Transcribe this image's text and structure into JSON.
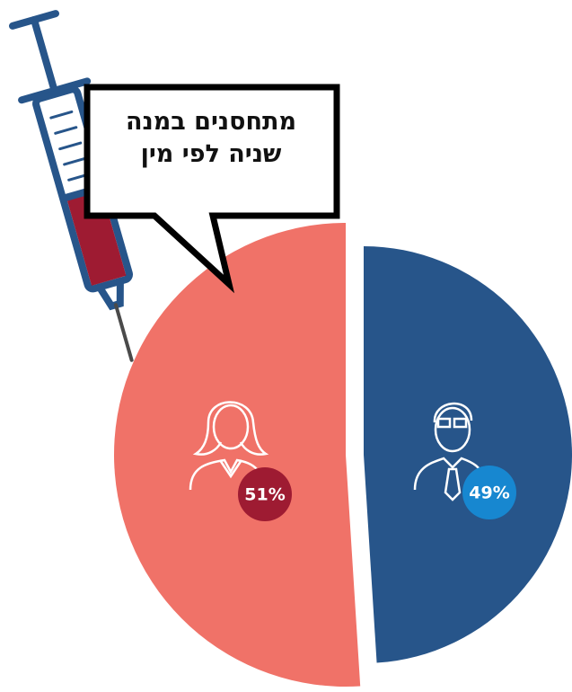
{
  "chart_data": {
    "type": "pie",
    "title": "מתחסנים במנה שניה לפי מין",
    "values": [
      51,
      49
    ],
    "value_labels": [
      "51%",
      "49%"
    ],
    "colors": [
      "#f07268",
      "#27558a"
    ]
  }
}
